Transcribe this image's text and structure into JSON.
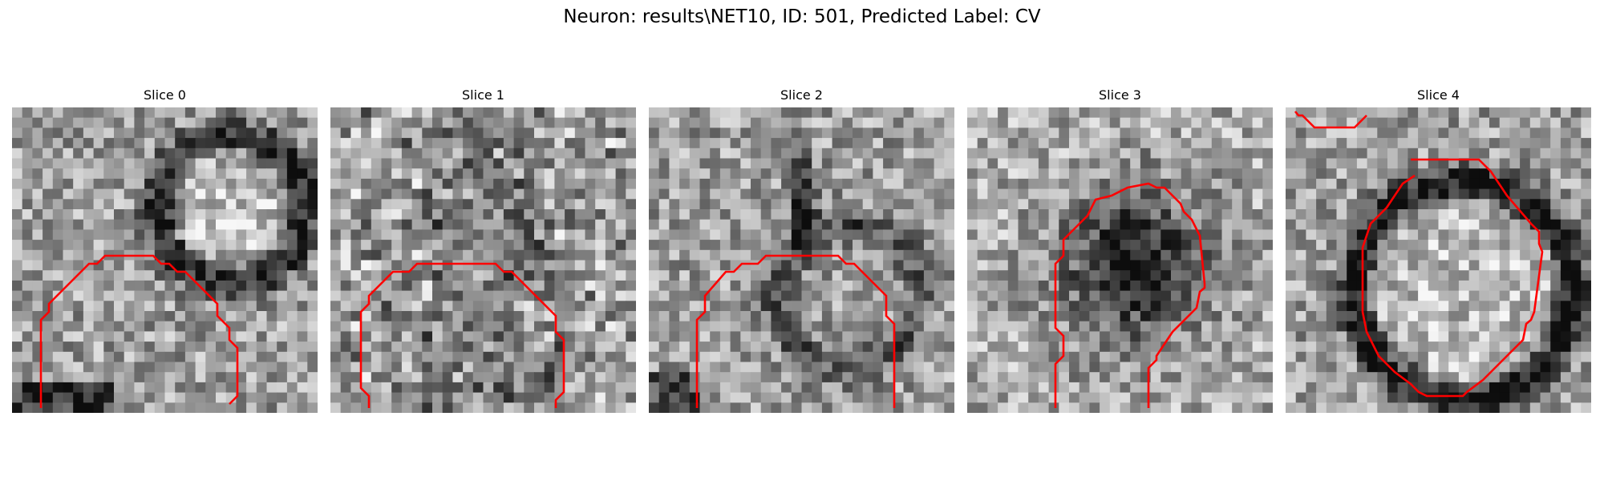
{
  "figure": {
    "suptitle": "Neuron: results\\NET10, ID: 501, Predicted Label: CV",
    "contour_color": "#ff0000",
    "colormap": "gray",
    "panels": [
      {
        "title": "Slice 0",
        "style": "ring-right"
      },
      {
        "title": "Slice 1",
        "style": "noisy"
      },
      {
        "title": "Slice 2",
        "style": "streak"
      },
      {
        "title": "Slice 3",
        "style": "dark-blob"
      },
      {
        "title": "Slice 4",
        "style": "ring-center"
      }
    ]
  }
}
